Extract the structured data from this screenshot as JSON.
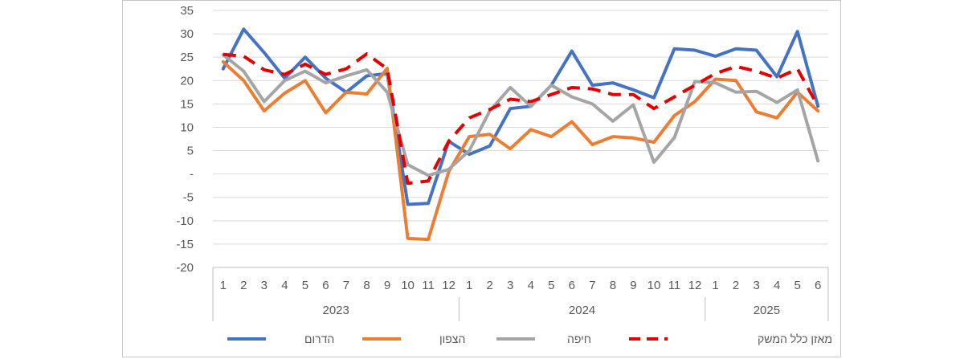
{
  "chart_data": {
    "type": "line",
    "title": "",
    "xlabel": "",
    "ylabel": "",
    "ylim": [
      -20,
      35
    ],
    "y_ticks": [
      35,
      30,
      25,
      20,
      15,
      10,
      5,
      0,
      -5,
      -10,
      -15,
      -20
    ],
    "y_tick_labels": [
      "35",
      "30",
      "25",
      "20",
      "15",
      "10",
      "5",
      "-",
      "-5",
      "-10",
      "-15",
      "-20"
    ],
    "grid": true,
    "legend_position": "bottom",
    "x_month_labels": [
      "1",
      "2",
      "3",
      "4",
      "5",
      "6",
      "7",
      "8",
      "9",
      "10",
      "11",
      "12",
      "1",
      "2",
      "3",
      "4",
      "5",
      "6",
      "7",
      "8",
      "9",
      "10",
      "11",
      "12",
      "1",
      "2",
      "3",
      "4",
      "5",
      "6"
    ],
    "x_year_groups": [
      {
        "label": "2023",
        "count": 12
      },
      {
        "label": "2024",
        "count": 12
      },
      {
        "label": "2025",
        "count": 6
      }
    ],
    "series": [
      {
        "name": "הדרום",
        "color": "#4472C4",
        "dashed": false,
        "values": [
          22.5,
          31,
          26,
          20.5,
          25,
          20.5,
          17.5,
          21,
          21.5,
          -6.5,
          -6.3,
          7,
          4.2,
          6,
          14,
          14.5,
          19,
          26.3,
          19,
          19.5,
          18,
          16.3,
          26.8,
          26.5,
          25.2,
          26.8,
          26.5,
          20.8,
          30.5,
          14.5
        ]
      },
      {
        "name": "הצפון",
        "color": "#ED7D31",
        "dashed": false,
        "values": [
          24,
          20,
          13.5,
          17.3,
          20,
          13.1,
          17.5,
          17.1,
          22.6,
          -13.8,
          -14,
          0.5,
          8,
          8.5,
          5.4,
          9.5,
          8,
          11.2,
          6.3,
          8,
          7.7,
          6.8,
          12.5,
          15.5,
          20.3,
          20,
          13.3,
          12,
          17.5,
          13.5
        ]
      },
      {
        "name": "חיפה",
        "color": "#A5A5A5",
        "dashed": false,
        "values": [
          25.5,
          22,
          15.5,
          20,
          22,
          19.5,
          21,
          22.3,
          17.5,
          2,
          -0.3,
          1,
          5,
          13.5,
          18.5,
          14.5,
          19,
          16.5,
          15,
          11.3,
          14.8,
          2.5,
          7.8,
          19.8,
          19.5,
          17.5,
          17.7,
          15.3,
          18,
          2.8
        ]
      },
      {
        "name": "מאזן כלל המשק",
        "color": "#E50000",
        "dashed": true,
        "values": [
          25.6,
          25.2,
          22.3,
          21.3,
          23.5,
          21.3,
          22.5,
          25.7,
          22.5,
          -2,
          -1.5,
          7,
          12,
          13.8,
          16,
          15.5,
          17,
          18.5,
          18.2,
          17,
          17,
          14,
          16.5,
          19,
          21.5,
          23,
          22,
          20.5,
          22.5,
          14.5
        ]
      }
    ]
  }
}
